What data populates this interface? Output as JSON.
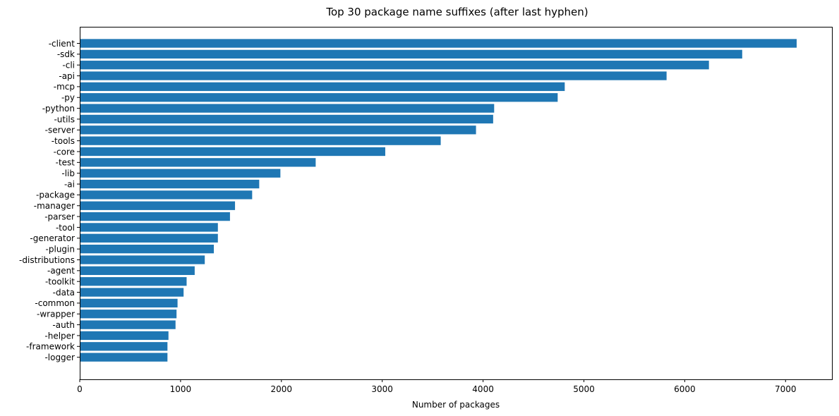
{
  "chart_data": {
    "type": "bar",
    "orientation": "horizontal",
    "title": "Top 30 package name suffixes (after last hyphen)",
    "xlabel": "Number of packages",
    "ylabel": "",
    "xlim": [
      0,
      7460
    ],
    "xticks": [
      0,
      1000,
      2000,
      3000,
      4000,
      5000,
      6000,
      7000
    ],
    "grid": false,
    "bar_color": "#1f77b4",
    "categories": [
      "-client",
      "-sdk",
      "-cli",
      "-api",
      "-mcp",
      "-py",
      "-python",
      "-utils",
      "-server",
      "-tools",
      "-core",
      "-test",
      "-lib",
      "-ai",
      "-package",
      "-manager",
      "-parser",
      "-tool",
      "-generator",
      "-plugin",
      "-distributions",
      "-agent",
      "-toolkit",
      "-data",
      "-common",
      "-wrapper",
      "-auth",
      "-helper",
      "-framework",
      "-logger"
    ],
    "values": [
      7110,
      6570,
      6240,
      5820,
      4810,
      4740,
      4110,
      4100,
      3930,
      3580,
      3030,
      2340,
      1990,
      1780,
      1710,
      1540,
      1490,
      1370,
      1370,
      1330,
      1240,
      1140,
      1060,
      1030,
      970,
      960,
      950,
      880,
      870,
      870
    ]
  }
}
